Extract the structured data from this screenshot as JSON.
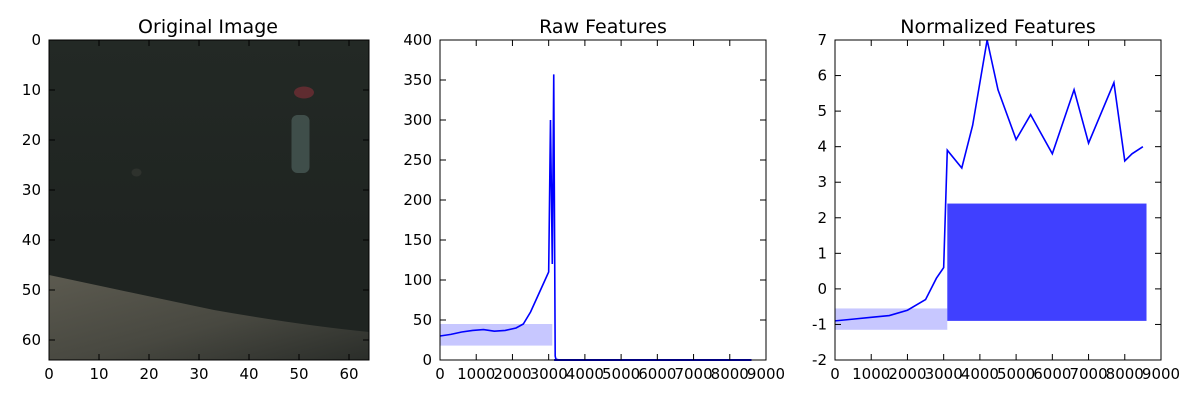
{
  "chart_data": [
    {
      "type": "image",
      "title": "Original Image",
      "xlim": [
        0,
        64
      ],
      "ylim": [
        64,
        0
      ],
      "xticks": [
        0,
        10,
        20,
        30,
        40,
        50,
        60
      ],
      "yticks": [
        0,
        10,
        20,
        30,
        40,
        50,
        60
      ],
      "colors": {
        "background": "#1f2421",
        "upper_area": "#232925",
        "lower_area": "#5f5d52",
        "red_spot": "#6a2d33",
        "pale_vertical_streak": "#4d5f5b"
      }
    },
    {
      "type": "line",
      "title": "Raw Features",
      "xlim": [
        0,
        9000
      ],
      "ylim": [
        0,
        400
      ],
      "xticks": [
        0,
        1000,
        2000,
        3000,
        4000,
        5000,
        6000,
        7000,
        8000,
        9000
      ],
      "yticks": [
        0,
        50,
        100,
        150,
        200,
        250,
        300,
        350,
        400
      ],
      "series": [
        {
          "color": "#0000ff",
          "x": [
            0,
            300,
            600,
            900,
            1200,
            1500,
            1800,
            2100,
            2300,
            2500,
            2700,
            2800,
            2900,
            3000,
            3050,
            3100,
            3140,
            3180,
            3200,
            3300,
            5000,
            7000,
            8600
          ],
          "y": [
            30,
            32,
            35,
            37,
            38,
            36,
            37,
            40,
            45,
            60,
            80,
            90,
            100,
            110,
            300,
            120,
            357,
            5,
            1,
            0,
            0,
            0,
            0
          ]
        }
      ]
    },
    {
      "type": "line",
      "title": "Normalized Features",
      "xlim": [
        0,
        9000
      ],
      "ylim": [
        -2,
        7
      ],
      "xticks": [
        0,
        1000,
        2000,
        3000,
        4000,
        5000,
        6000,
        7000,
        8000,
        9000
      ],
      "yticks": [
        -2,
        -1,
        0,
        1,
        2,
        3,
        4,
        5,
        6,
        7
      ],
      "series": [
        {
          "color": "#0000ff",
          "x": [
            0,
            500,
            1000,
            1500,
            2000,
            2500,
            2800,
            3000,
            3100,
            3500,
            3800,
            4200,
            4500,
            5000,
            5400,
            6000,
            6600,
            7000,
            7700,
            8000,
            8200,
            8500
          ],
          "y": [
            -0.9,
            -0.85,
            -0.8,
            -0.75,
            -0.6,
            -0.3,
            0.3,
            0.6,
            3.9,
            3.4,
            4.6,
            7.0,
            5.6,
            4.2,
            4.9,
            3.8,
            5.6,
            4.1,
            5.8,
            3.6,
            3.8,
            4.0
          ]
        }
      ]
    }
  ]
}
